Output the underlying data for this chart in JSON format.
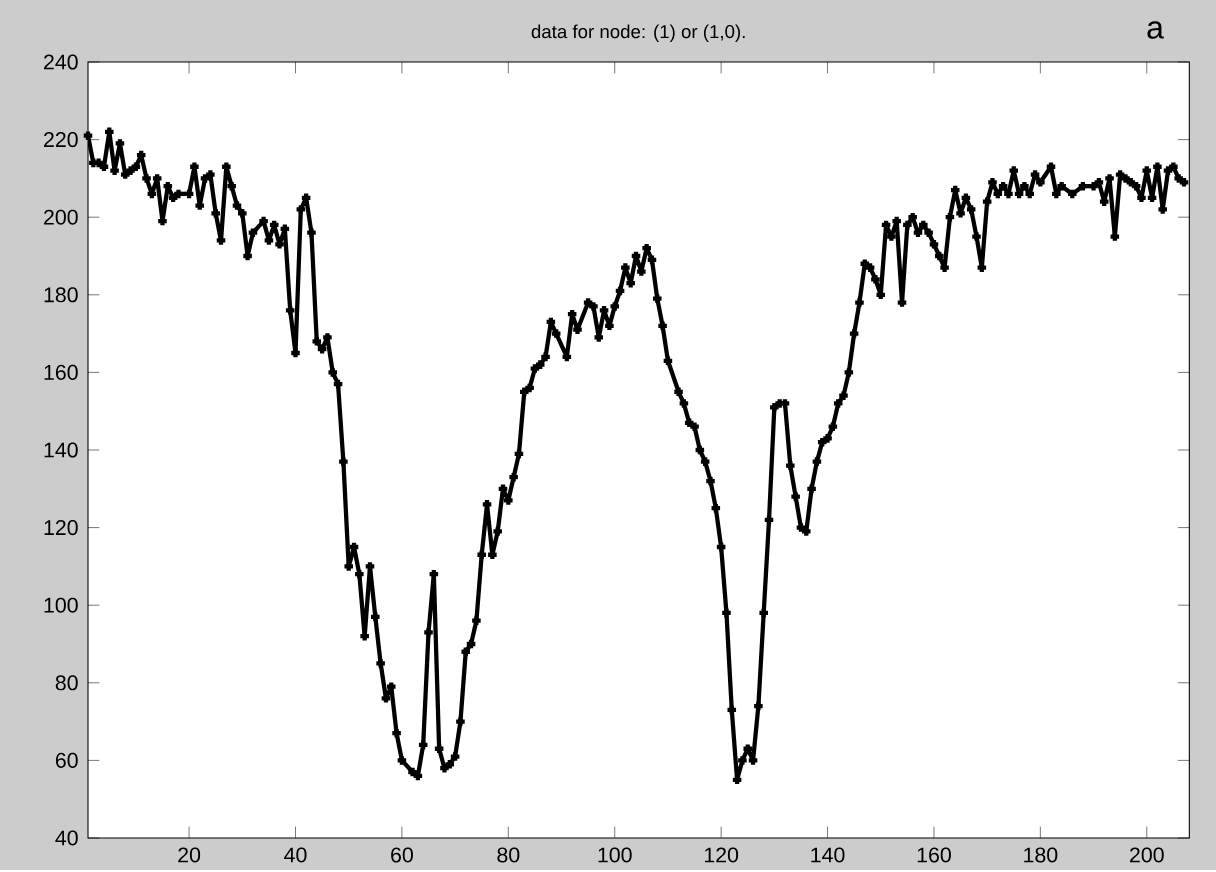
{
  "chart_data": {
    "type": "line",
    "title": "data for node: (1) or (1,0).",
    "annotations": [
      "a"
    ],
    "x": [
      1,
      2,
      3,
      4,
      5,
      6,
      7,
      8,
      9,
      10,
      11,
      12,
      13,
      14,
      15,
      16,
      17,
      18,
      20,
      21,
      22,
      23,
      24,
      25,
      26,
      27,
      28,
      29,
      30,
      31,
      32,
      34,
      35,
      36,
      37,
      38,
      39,
      40,
      41,
      42,
      43,
      44,
      45,
      46,
      47,
      48,
      49,
      50,
      51,
      52,
      53,
      54,
      55,
      56,
      57,
      58,
      59,
      60,
      62,
      63,
      64,
      65,
      66,
      67,
      68,
      69,
      70,
      71,
      72,
      73,
      74,
      75,
      76,
      77,
      78,
      79,
      80,
      81,
      82,
      83,
      84,
      85,
      86,
      87,
      88,
      89,
      91,
      92,
      93,
      95,
      96,
      97,
      98,
      99,
      100,
      101,
      102,
      103,
      104,
      105,
      106,
      107,
      108,
      109,
      110,
      112,
      113,
      114,
      115,
      116,
      117,
      118,
      119,
      120,
      121,
      122,
      123,
      124,
      125,
      126,
      127,
      128,
      129,
      130,
      131,
      132,
      133,
      134,
      135,
      136,
      137,
      138,
      139,
      140,
      141,
      142,
      143,
      144,
      145,
      146,
      147,
      148,
      149,
      150,
      151,
      152,
      153,
      154,
      155,
      156,
      157,
      158,
      159,
      160,
      161,
      162,
      163,
      164,
      165,
      166,
      167,
      168,
      169,
      170,
      171,
      172,
      173,
      174,
      175,
      176,
      177,
      178,
      179,
      180,
      182,
      183,
      184,
      186,
      188,
      190,
      191,
      192,
      193,
      194,
      195,
      196,
      197,
      198,
      199,
      200,
      201,
      202,
      203,
      204,
      205,
      206,
      207
    ],
    "series": [
      {
        "color": "#000000",
        "values": [
          221,
          214,
          214,
          213,
          222,
          212,
          219,
          211,
          212,
          213,
          216,
          210,
          206,
          210,
          199,
          208,
          205,
          206,
          206,
          213,
          203,
          210,
          211,
          201,
          194,
          213,
          208,
          203,
          201,
          190,
          196,
          199,
          194,
          198,
          193,
          197,
          176,
          165,
          202,
          205,
          196,
          168,
          166,
          169,
          160,
          157,
          137,
          110,
          115,
          108,
          92,
          110,
          97,
          85,
          76,
          79,
          67,
          60,
          57,
          56,
          64,
          93,
          108,
          63,
          58,
          59,
          61,
          70,
          88,
          90,
          96,
          113,
          126,
          113,
          119,
          130,
          127,
          133,
          139,
          155,
          156,
          161,
          162,
          164,
          173,
          170,
          164,
          175,
          171,
          178,
          177,
          169,
          176,
          172,
          177,
          181,
          187,
          183,
          190,
          186,
          192,
          189,
          179,
          172,
          163,
          155,
          152,
          147,
          146,
          140,
          137,
          132,
          125,
          115,
          98,
          73,
          55,
          60,
          63,
          60,
          74,
          98,
          122,
          151,
          152,
          152,
          136,
          128,
          120,
          119,
          130,
          137,
          142,
          143,
          146,
          152,
          154,
          160,
          170,
          178,
          188,
          187,
          184,
          180,
          198,
          195,
          199,
          178,
          198,
          200,
          196,
          198,
          196,
          193,
          190,
          187,
          200,
          207,
          201,
          205,
          202,
          195,
          187,
          204,
          209,
          206,
          208,
          206,
          212,
          206,
          208,
          206,
          211,
          209,
          213,
          206,
          208,
          206,
          208,
          208,
          209,
          204,
          210,
          195,
          211,
          210,
          209,
          208,
          205,
          212,
          205,
          213,
          202,
          212,
          213,
          210,
          209
        ]
      }
    ],
    "xlim": [
      1,
      208
    ],
    "ylim": [
      40,
      240
    ],
    "xticks": [
      20,
      40,
      60,
      80,
      100,
      120,
      140,
      160,
      180,
      200
    ],
    "yticks": [
      40,
      60,
      80,
      100,
      120,
      140,
      160,
      180,
      200,
      220,
      240
    ],
    "marker": "cross",
    "line_style": "solid",
    "grid": false
  }
}
